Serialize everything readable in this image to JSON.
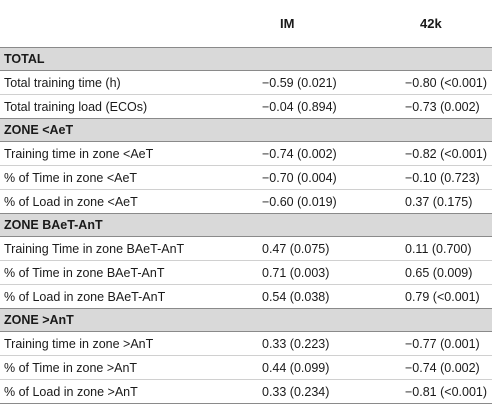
{
  "header": {
    "label": "",
    "col_im": "IM",
    "col_42k": "42k"
  },
  "sections": [
    {
      "title": "TOTAL",
      "rows": [
        {
          "label": "Total training time (h)",
          "im": "−0.59 (0.021)",
          "k42": "−0.80 (<0.001)"
        },
        {
          "label": "Total training load (ECOs)",
          "im": "−0.04 (0.894)",
          "k42": "−0.73 (0.002)"
        }
      ]
    },
    {
      "title": "ZONE <AeT",
      "rows": [
        {
          "label": "Training time in zone <AeT",
          "im": "−0.74 (0.002)",
          "k42": "−0.82 (<0.001)"
        },
        {
          "label": "% of Time in zone <AeT",
          "im": "−0.70 (0.004)",
          "k42": "−0.10 (0.723)"
        },
        {
          "label": "% of Load in zone <AeT",
          "im": "−0.60 (0.019)",
          "k42": "0.37 (0.175)"
        }
      ]
    },
    {
      "title": "ZONE BAeT-AnT",
      "rows": [
        {
          "label": "Training Time in zone BAeT-AnT",
          "im": "0.47 (0.075)",
          "k42": "0.11 (0.700)"
        },
        {
          "label": "% of Time in zone BAeT-AnT",
          "im": "0.71 (0.003)",
          "k42": "0.65 (0.009)"
        },
        {
          "label": "% of Load in zone BAeT-AnT",
          "im": "0.54 (0.038)",
          "k42": "0.79 (<0.001)"
        }
      ]
    },
    {
      "title": "ZONE >AnT",
      "rows": [
        {
          "label": "Training time in zone >AnT",
          "im": "0.33 (0.223)",
          "k42": "−0.77 (0.001)"
        },
        {
          "label": "% of Time in zone >AnT",
          "im": "0.44 (0.099)",
          "k42": "−0.74 (0.002)"
        },
        {
          "label": "% of Load in zone >AnT",
          "im": "0.33 (0.234)",
          "k42": "−0.81 (<0.001)"
        }
      ]
    }
  ]
}
